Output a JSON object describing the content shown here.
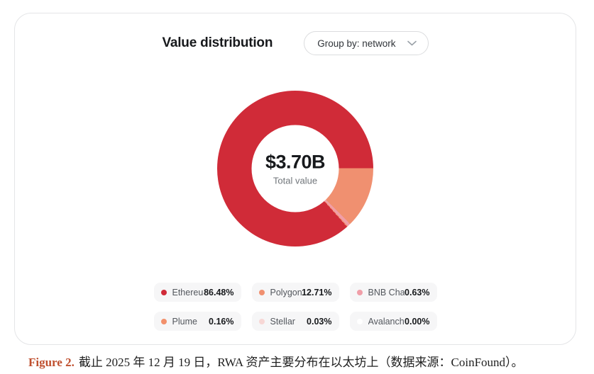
{
  "header": {
    "title": "Value distribution",
    "group_by_label": "Group by: network"
  },
  "chart_data": {
    "type": "pie",
    "donut": true,
    "title": "Value distribution",
    "group_by": "network",
    "center": {
      "value": "$3.70B",
      "label": "Total value"
    },
    "rotation_deg": 138.3,
    "legend_position": "bottom",
    "legend_columns": 3,
    "segments": [
      {
        "name": "Ethereum",
        "label": "Ethereu…",
        "pct": 86.48,
        "pct_label": "86.48%",
        "color": "#d02b38"
      },
      {
        "name": "Polygon",
        "label": "Polygon",
        "pct": 12.71,
        "pct_label": "12.71%",
        "color": "#f09070"
      },
      {
        "name": "BNB Chain",
        "label": "BNB Cha…",
        "pct": 0.63,
        "pct_label": "0.63%",
        "color": "#f09ea8"
      },
      {
        "name": "Plume",
        "label": "Plume",
        "pct": 0.16,
        "pct_label": "0.16%",
        "color": "#f2906b"
      },
      {
        "name": "Stellar",
        "label": "Stellar",
        "pct": 0.03,
        "pct_label": "0.03%",
        "color": "#f7d7d5"
      },
      {
        "name": "Avalanche",
        "label": "Avalanch…",
        "pct": 0.0,
        "pct_label": "0.00%",
        "color": "#ffffff"
      }
    ]
  },
  "caption": {
    "figure_label": "Figure 2.",
    "text": "截止 2025 年 12 月 19 日，RWA 资产主要分布在以太坊上（数据来源：CoinFound）。"
  }
}
